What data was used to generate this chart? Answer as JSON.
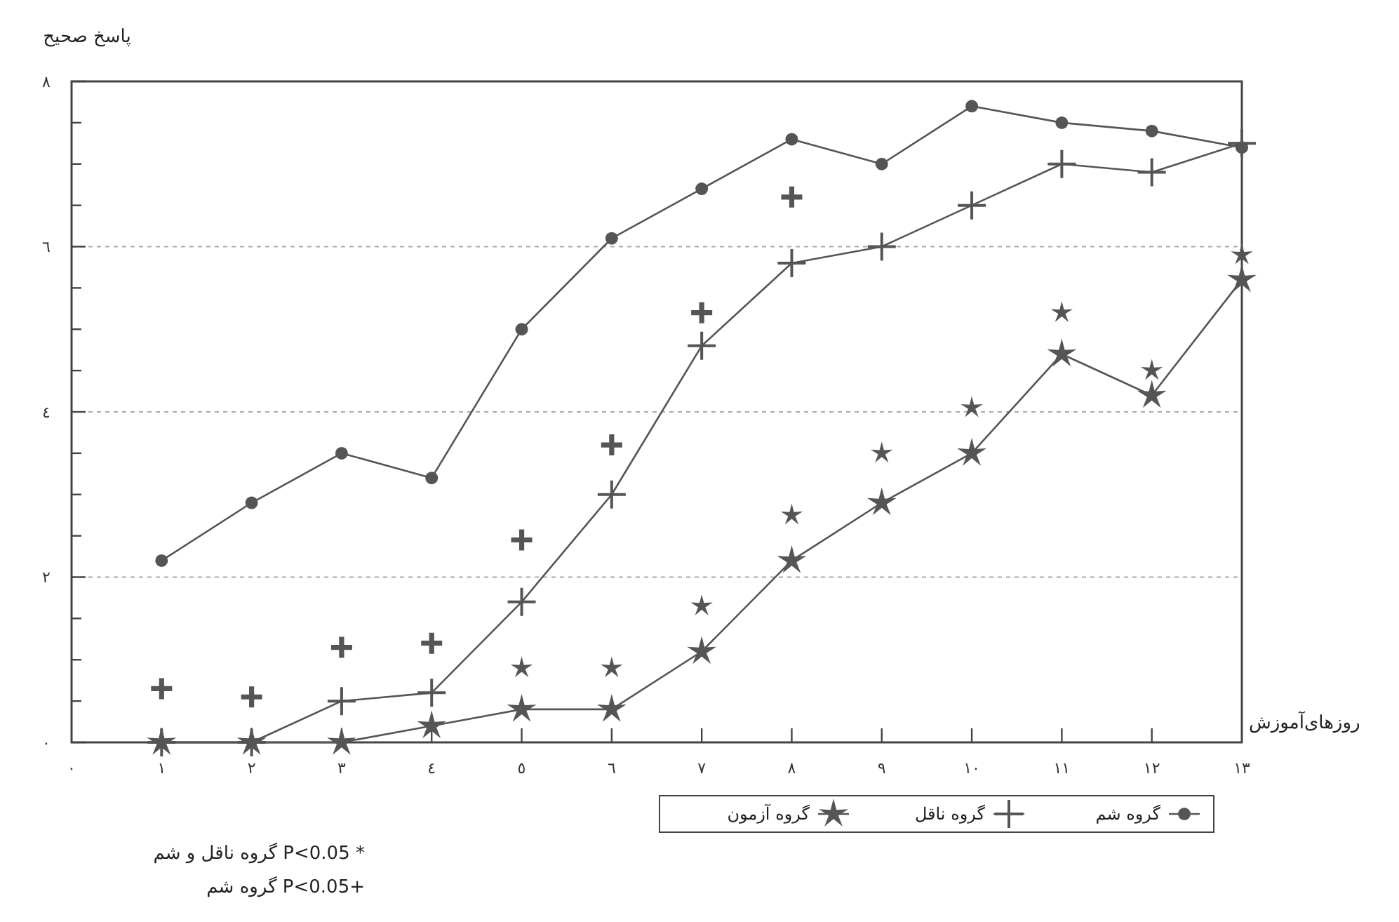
{
  "chart_data": {
    "type": "line",
    "ylabel": "پاسخ صحیح",
    "xlabel": "روزهای‌آموزش",
    "x": [
      1,
      2,
      3,
      4,
      5,
      6,
      7,
      8,
      9,
      10,
      11,
      12,
      13
    ],
    "series": [
      {
        "name": "گروه شم",
        "color": "#555555",
        "marker": "circle",
        "values": [
          2.2,
          2.9,
          3.5,
          3.2,
          5.0,
          6.1,
          6.7,
          7.3,
          7.0,
          7.7,
          7.5,
          7.4,
          7.2
        ]
      },
      {
        "name": "گروه ناقل",
        "color": "#555555",
        "marker": "cross",
        "values": [
          0,
          0,
          0.5,
          0.6,
          1.7,
          3.0,
          4.8,
          5.8,
          6.0,
          6.5,
          7.0,
          6.9,
          7.25
        ]
      },
      {
        "name": "گروه آزمون",
        "color": "#555555",
        "marker": "star",
        "values": [
          0,
          0,
          0,
          0.2,
          0.4,
          0.4,
          1.1,
          2.2,
          2.9,
          3.5,
          4.7,
          4.2,
          5.6
        ]
      },
      {
        "type": "scatter",
        "color": "#555555",
        "marker": "cross",
        "x": [
          1,
          2,
          3,
          4,
          5,
          6,
          7,
          8
        ],
        "values": [
          0.65,
          0.55,
          1.15,
          1.2,
          2.45,
          3.6,
          5.2,
          6.6
        ]
      },
      {
        "type": "scatter",
        "color": "#555555",
        "marker": "star",
        "x": [
          5,
          6,
          7,
          8,
          9,
          10,
          11,
          12,
          13
        ],
        "values": [
          0.9,
          0.9,
          1.65,
          2.75,
          3.5,
          4.05,
          5.2,
          4.5,
          5.9
        ]
      }
    ],
    "xlim": [
      0,
      13
    ],
    "xticks": [
      {
        "value": 0,
        "label": "٠"
      },
      {
        "value": 1,
        "label": "١"
      },
      {
        "value": 2,
        "label": "٢"
      },
      {
        "value": 3,
        "label": "٣"
      },
      {
        "value": 4,
        "label": "٤"
      },
      {
        "value": 5,
        "label": "٥"
      },
      {
        "value": 6,
        "label": "٦"
      },
      {
        "value": 7,
        "label": "٧"
      },
      {
        "value": 8,
        "label": "٨"
      },
      {
        "value": 9,
        "label": "٩"
      },
      {
        "value": 10,
        "label": "١٠"
      },
      {
        "value": 11,
        "label": "١١"
      },
      {
        "value": 12,
        "label": "١٢"
      },
      {
        "value": 13,
        "label": "١٣"
      }
    ],
    "ylim": [
      0,
      8
    ],
    "yticks": [
      {
        "value": 0,
        "label": "٠"
      },
      {
        "value": 0.5,
        "label": null
      },
      {
        "value": 1,
        "label": null
      },
      {
        "value": 1.5,
        "label": null
      },
      {
        "value": 2,
        "label": "٢"
      },
      {
        "value": 2.5,
        "label": null
      },
      {
        "value": 3,
        "label": null
      },
      {
        "value": 3.5,
        "label": null
      },
      {
        "value": 4,
        "label": "٤"
      },
      {
        "value": 4.5,
        "label": null
      },
      {
        "value": 5,
        "label": null
      },
      {
        "value": 5.5,
        "label": null
      },
      {
        "value": 6,
        "label": "٦"
      },
      {
        "value": 6.5,
        "label": null
      },
      {
        "value": 7,
        "label": null
      },
      {
        "value": 7.5,
        "label": null
      },
      {
        "value": 8,
        "label": "٨"
      }
    ],
    "grid": "y",
    "legend": "bottom",
    "annotations": [
      "* P<0.05 گروه ناقل و شم",
      "+P<0.05 گروه شم"
    ]
  }
}
